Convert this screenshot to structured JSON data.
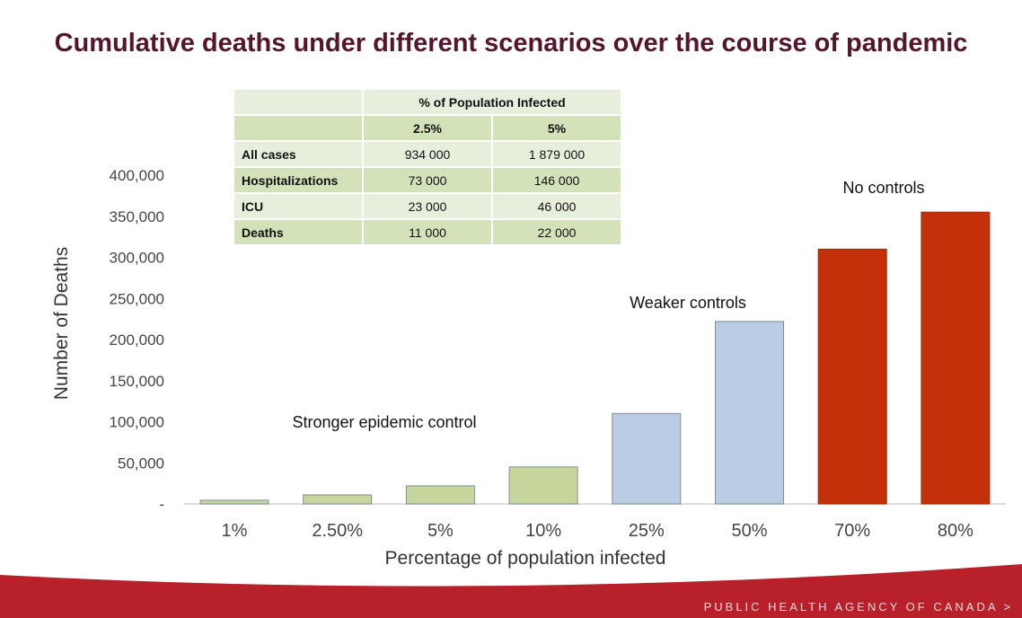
{
  "title": "Cumulative deaths under different scenarios over the course of pandemic",
  "table": {
    "header": "% of Population Infected",
    "columns": [
      "2.5%",
      "5%"
    ],
    "rows": [
      {
        "label": "All cases",
        "values": [
          "934 000",
          "1 879 000"
        ]
      },
      {
        "label": "Hospitalizations",
        "values": [
          "73 000",
          "146 000"
        ]
      },
      {
        "label": "ICU",
        "values": [
          "23 000",
          "46 000"
        ]
      },
      {
        "label": "Deaths",
        "values": [
          "11 000",
          "22 000"
        ]
      }
    ]
  },
  "chart_data": {
    "type": "bar",
    "title": "",
    "xlabel": "Percentage of population infected",
    "ylabel": "Number of Deaths",
    "ylim": [
      0,
      400000
    ],
    "yticks": [
      0,
      50000,
      100000,
      150000,
      200000,
      250000,
      300000,
      350000,
      400000
    ],
    "ytick_labels": [
      "-",
      "50,000",
      "100,000",
      "150,000",
      "200,000",
      "250,000",
      "300,000",
      "350,000",
      "400,000"
    ],
    "categories": [
      "1%",
      "2.50%",
      "5%",
      "10%",
      "25%",
      "50%",
      "70%",
      "80%"
    ],
    "values": [
      4500,
      11000,
      22000,
      45000,
      110000,
      222000,
      310000,
      355000
    ],
    "bar_colors": [
      "#c6d69d",
      "#c6d69d",
      "#c6d69d",
      "#c6d69d",
      "#b9cde5",
      "#b9cde5",
      "#c3300a",
      "#c3300a"
    ],
    "grid": false,
    "annotations": [
      {
        "text": "Stronger epidemic control",
        "group": [
          "1%",
          "2.50%",
          "5%",
          "10%"
        ]
      },
      {
        "text": "Weaker controls",
        "group": [
          "25%",
          "50%"
        ]
      },
      {
        "text": "No controls",
        "group": [
          "70%",
          "80%"
        ]
      }
    ]
  },
  "footer": {
    "text": "PUBLIC HEALTH AGENCY OF CANADA >",
    "color": "#b8202a"
  }
}
